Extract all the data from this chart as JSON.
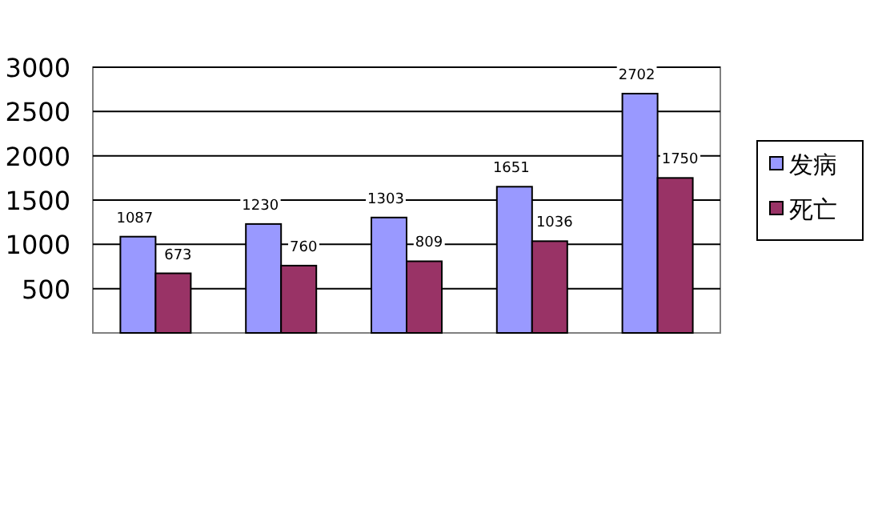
{
  "chart_data": {
    "type": "bar",
    "categories": [
      null,
      null,
      null,
      null,
      null
    ],
    "series": [
      {
        "name": "发病",
        "color": "#9999ff",
        "values": [
          1087,
          1230,
          1303,
          1651,
          2702
        ]
      },
      {
        "name": "死亡",
        "color": "#993366",
        "values": [
          673,
          760,
          809,
          1036,
          1750
        ]
      }
    ],
    "ylim": [
      0,
      3000
    ],
    "yticks": [
      500,
      1000,
      1500,
      2000,
      2500,
      3000
    ],
    "grid": "y",
    "legend": "right",
    "data_labels": true
  }
}
